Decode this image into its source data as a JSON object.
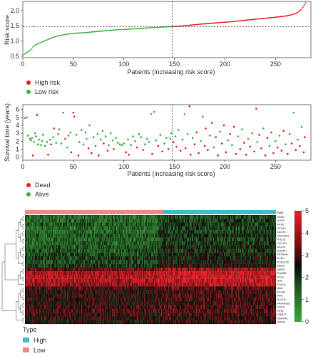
{
  "chart_data": [
    {
      "type": "scatter",
      "ylabel": "Risk score",
      "xlabel": "Patients (increasing risk score)",
      "xlim": [
        0,
        285
      ],
      "ylim": [
        0.45,
        2.3
      ],
      "x_ticks": [
        "0",
        "50",
        "100",
        "150",
        "200",
        "250"
      ],
      "y_ticks": [
        "0.5",
        "1.0",
        "1.5",
        "2.0"
      ],
      "cutoff_patient": 148,
      "cutoff_score": 1.47,
      "n_patients": 280,
      "curve_points": [
        [
          1,
          0.55
        ],
        [
          2,
          0.58
        ],
        [
          4,
          0.62
        ],
        [
          6,
          0.66
        ],
        [
          8,
          0.72
        ],
        [
          10,
          0.8
        ],
        [
          12,
          0.86
        ],
        [
          15,
          0.91
        ],
        [
          20,
          0.98
        ],
        [
          25,
          1.05
        ],
        [
          30,
          1.12
        ],
        [
          35,
          1.17
        ],
        [
          40,
          1.2
        ],
        [
          45,
          1.23
        ],
        [
          50,
          1.25
        ],
        [
          60,
          1.27
        ],
        [
          70,
          1.3
        ],
        [
          80,
          1.33
        ],
        [
          90,
          1.36
        ],
        [
          100,
          1.38
        ],
        [
          110,
          1.4
        ],
        [
          120,
          1.42
        ],
        [
          130,
          1.44
        ],
        [
          140,
          1.46
        ],
        [
          148,
          1.47
        ],
        [
          160,
          1.5
        ],
        [
          175,
          1.55
        ],
        [
          190,
          1.59
        ],
        [
          205,
          1.63
        ],
        [
          220,
          1.68
        ],
        [
          235,
          1.73
        ],
        [
          250,
          1.78
        ],
        [
          262,
          1.83
        ],
        [
          268,
          1.88
        ],
        [
          272,
          1.94
        ],
        [
          275,
          2.02
        ],
        [
          277,
          2.1
        ],
        [
          279,
          2.2
        ],
        [
          280,
          2.25
        ]
      ],
      "series": [
        {
          "name": "High risk",
          "color": "#e8202a"
        },
        {
          "name": "Low risk",
          "color": "#40b040"
        }
      ],
      "legend_placement": "bottom-left"
    },
    {
      "type": "scatter",
      "ylabel": "Survival time (years)",
      "xlabel": "Patients (increasing risk score)",
      "xlim": [
        0,
        285
      ],
      "ylim": [
        -0.4,
        6.6
      ],
      "x_ticks": [
        "0",
        "50",
        "100",
        "150",
        "200",
        "250"
      ],
      "y_ticks": [
        "0",
        "1",
        "2",
        "3",
        "4",
        "5",
        "6"
      ],
      "cutoff_patient": 148,
      "series": [
        {
          "name": "Dead",
          "color": "#e8202a"
        },
        {
          "name": "Alive",
          "color": "#40b040"
        }
      ],
      "legend_placement": "bottom-left",
      "points": [
        {
          "x": 2,
          "y": 4.9,
          "s": "a"
        },
        {
          "x": 4,
          "y": 5.0,
          "s": "a"
        },
        {
          "x": 5,
          "y": 2.7,
          "s": "a"
        },
        {
          "x": 7,
          "y": 2.3,
          "s": "a"
        },
        {
          "x": 8,
          "y": 2.1,
          "s": "a"
        },
        {
          "x": 9,
          "y": 2.4,
          "s": "a"
        },
        {
          "x": 10,
          "y": 0.2,
          "s": "d"
        },
        {
          "x": 11,
          "y": 1.9,
          "s": "a"
        },
        {
          "x": 12,
          "y": 3.0,
          "s": "a"
        },
        {
          "x": 13,
          "y": 2.6,
          "s": "a"
        },
        {
          "x": 14,
          "y": 5.3,
          "s": "d"
        },
        {
          "x": 15,
          "y": 1.6,
          "s": "a"
        },
        {
          "x": 16,
          "y": 2.2,
          "s": "a"
        },
        {
          "x": 18,
          "y": 1.5,
          "s": "a"
        },
        {
          "x": 19,
          "y": 2.0,
          "s": "a"
        },
        {
          "x": 20,
          "y": 2.8,
          "s": "a"
        },
        {
          "x": 22,
          "y": 1.4,
          "s": "a"
        },
        {
          "x": 24,
          "y": 1.9,
          "s": "a"
        },
        {
          "x": 25,
          "y": 0.3,
          "s": "d"
        },
        {
          "x": 27,
          "y": 2.2,
          "s": "a"
        },
        {
          "x": 28,
          "y": 1.6,
          "s": "d"
        },
        {
          "x": 30,
          "y": 2.5,
          "s": "a"
        },
        {
          "x": 31,
          "y": 3.6,
          "s": "d"
        },
        {
          "x": 33,
          "y": 1.8,
          "s": "a"
        },
        {
          "x": 35,
          "y": 2.9,
          "s": "a"
        },
        {
          "x": 36,
          "y": 3.5,
          "s": "a"
        },
        {
          "x": 38,
          "y": 1.7,
          "s": "a"
        },
        {
          "x": 40,
          "y": 5.6,
          "s": "a"
        },
        {
          "x": 42,
          "y": 2.3,
          "s": "d"
        },
        {
          "x": 44,
          "y": 1.2,
          "s": "a"
        },
        {
          "x": 45,
          "y": 2.7,
          "s": "a"
        },
        {
          "x": 47,
          "y": 3.1,
          "s": "a"
        },
        {
          "x": 48,
          "y": 0.6,
          "s": "d"
        },
        {
          "x": 50,
          "y": 5.6,
          "s": "d"
        },
        {
          "x": 51,
          "y": 5.1,
          "s": "d"
        },
        {
          "x": 53,
          "y": 2.8,
          "s": "a"
        },
        {
          "x": 55,
          "y": 0.2,
          "s": "d"
        },
        {
          "x": 56,
          "y": 1.9,
          "s": "a"
        },
        {
          "x": 58,
          "y": 3.4,
          "s": "a"
        },
        {
          "x": 60,
          "y": 1.6,
          "s": "a"
        },
        {
          "x": 62,
          "y": 3.1,
          "s": "a"
        },
        {
          "x": 63,
          "y": 2.3,
          "s": "a"
        },
        {
          "x": 65,
          "y": 1.1,
          "s": "d"
        },
        {
          "x": 66,
          "y": 4.0,
          "s": "a"
        },
        {
          "x": 68,
          "y": 0.5,
          "s": "d"
        },
        {
          "x": 70,
          "y": 2.5,
          "s": "a"
        },
        {
          "x": 72,
          "y": 1.4,
          "s": "a"
        },
        {
          "x": 74,
          "y": 2.9,
          "s": "a"
        },
        {
          "x": 75,
          "y": 0.2,
          "s": "d"
        },
        {
          "x": 77,
          "y": 2.2,
          "s": "a"
        },
        {
          "x": 79,
          "y": 3.3,
          "s": "a"
        },
        {
          "x": 80,
          "y": 1.7,
          "s": "d"
        },
        {
          "x": 82,
          "y": 2.6,
          "s": "a"
        },
        {
          "x": 84,
          "y": 0.8,
          "s": "d"
        },
        {
          "x": 85,
          "y": 1.5,
          "s": "a"
        },
        {
          "x": 87,
          "y": 3.0,
          "s": "a"
        },
        {
          "x": 89,
          "y": 2.1,
          "s": "a"
        },
        {
          "x": 90,
          "y": 1.0,
          "s": "d"
        },
        {
          "x": 92,
          "y": 2.4,
          "s": "a"
        },
        {
          "x": 94,
          "y": 1.8,
          "s": "a"
        },
        {
          "x": 96,
          "y": 1.6,
          "s": "a"
        },
        {
          "x": 98,
          "y": 1.5,
          "s": "a"
        },
        {
          "x": 100,
          "y": 1.7,
          "s": "a"
        },
        {
          "x": 102,
          "y": 0.6,
          "s": "d"
        },
        {
          "x": 104,
          "y": 2.2,
          "s": "a"
        },
        {
          "x": 105,
          "y": 0.3,
          "s": "d"
        },
        {
          "x": 107,
          "y": 1.5,
          "s": "a"
        },
        {
          "x": 109,
          "y": 2.6,
          "s": "a"
        },
        {
          "x": 111,
          "y": 2.0,
          "s": "a"
        },
        {
          "x": 113,
          "y": 1.2,
          "s": "d"
        },
        {
          "x": 115,
          "y": 2.9,
          "s": "a"
        },
        {
          "x": 117,
          "y": 2.5,
          "s": "a"
        },
        {
          "x": 119,
          "y": 0.9,
          "s": "d"
        },
        {
          "x": 121,
          "y": 1.6,
          "s": "a"
        },
        {
          "x": 123,
          "y": 2.3,
          "s": "a"
        },
        {
          "x": 125,
          "y": 1.9,
          "s": "a"
        },
        {
          "x": 127,
          "y": 5.4,
          "s": "a"
        },
        {
          "x": 128,
          "y": 0.4,
          "s": "d"
        },
        {
          "x": 130,
          "y": 5.7,
          "s": "a"
        },
        {
          "x": 132,
          "y": 2.1,
          "s": "a"
        },
        {
          "x": 134,
          "y": 1.4,
          "s": "d"
        },
        {
          "x": 136,
          "y": 2.8,
          "s": "a"
        },
        {
          "x": 138,
          "y": 0.7,
          "s": "d"
        },
        {
          "x": 140,
          "y": 1.7,
          "s": "a"
        },
        {
          "x": 142,
          "y": 2.4,
          "s": "a"
        },
        {
          "x": 144,
          "y": 1.0,
          "s": "d"
        },
        {
          "x": 146,
          "y": 2.3,
          "s": "a"
        },
        {
          "x": 147,
          "y": 3.0,
          "s": "a"
        },
        {
          "x": 149,
          "y": 1.9,
          "s": "d"
        },
        {
          "x": 151,
          "y": 2.6,
          "s": "a"
        },
        {
          "x": 152,
          "y": 1.3,
          "s": "d"
        },
        {
          "x": 154,
          "y": 3.4,
          "s": "a"
        },
        {
          "x": 156,
          "y": 0.8,
          "s": "d"
        },
        {
          "x": 158,
          "y": 2.2,
          "s": "a"
        },
        {
          "x": 160,
          "y": 5.4,
          "s": "a"
        },
        {
          "x": 161,
          "y": 1.1,
          "s": "d"
        },
        {
          "x": 163,
          "y": 2.9,
          "s": "a"
        },
        {
          "x": 165,
          "y": 6.4,
          "s": "d"
        },
        {
          "x": 166,
          "y": 0.3,
          "s": "d"
        },
        {
          "x": 168,
          "y": 2.4,
          "s": "a"
        },
        {
          "x": 170,
          "y": 1.6,
          "s": "d"
        },
        {
          "x": 172,
          "y": 3.1,
          "s": "d"
        },
        {
          "x": 174,
          "y": 0.5,
          "s": "d"
        },
        {
          "x": 176,
          "y": 2.0,
          "s": "a"
        },
        {
          "x": 178,
          "y": 5.1,
          "s": "a"
        },
        {
          "x": 180,
          "y": 1.4,
          "s": "d"
        },
        {
          "x": 181,
          "y": 3.6,
          "s": "d"
        },
        {
          "x": 183,
          "y": 0.9,
          "s": "d"
        },
        {
          "x": 185,
          "y": 2.7,
          "s": "a"
        },
        {
          "x": 187,
          "y": 4.3,
          "s": "d"
        },
        {
          "x": 189,
          "y": 1.2,
          "s": "a"
        },
        {
          "x": 191,
          "y": 2.5,
          "s": "d"
        },
        {
          "x": 193,
          "y": 0.2,
          "s": "d"
        },
        {
          "x": 195,
          "y": 3.2,
          "s": "a"
        },
        {
          "x": 197,
          "y": 1.7,
          "s": "d"
        },
        {
          "x": 199,
          "y": 4.0,
          "s": "d"
        },
        {
          "x": 201,
          "y": 0.6,
          "s": "d"
        },
        {
          "x": 203,
          "y": 2.1,
          "s": "a"
        },
        {
          "x": 205,
          "y": 2.9,
          "s": "d"
        },
        {
          "x": 207,
          "y": 1.5,
          "s": "a"
        },
        {
          "x": 209,
          "y": 3.8,
          "s": "d"
        },
        {
          "x": 211,
          "y": 0.4,
          "s": "d"
        },
        {
          "x": 213,
          "y": 2.6,
          "s": "a"
        },
        {
          "x": 215,
          "y": 1.0,
          "s": "d"
        },
        {
          "x": 217,
          "y": 3.5,
          "s": "a"
        },
        {
          "x": 219,
          "y": 1.8,
          "s": "d"
        },
        {
          "x": 221,
          "y": 0.3,
          "s": "d"
        },
        {
          "x": 223,
          "y": 2.3,
          "s": "a"
        },
        {
          "x": 225,
          "y": 1.3,
          "s": "d"
        },
        {
          "x": 227,
          "y": 3.0,
          "s": "a"
        },
        {
          "x": 229,
          "y": 0.7,
          "s": "d"
        },
        {
          "x": 231,
          "y": 6.1,
          "s": "d"
        },
        {
          "x": 232,
          "y": 1.9,
          "s": "a"
        },
        {
          "x": 234,
          "y": 2.8,
          "s": "d"
        },
        {
          "x": 236,
          "y": 1.1,
          "s": "d"
        },
        {
          "x": 238,
          "y": 3.6,
          "s": "a"
        },
        {
          "x": 240,
          "y": 0.2,
          "s": "d"
        },
        {
          "x": 242,
          "y": 2.4,
          "s": "d"
        },
        {
          "x": 244,
          "y": 1.4,
          "s": "a"
        },
        {
          "x": 246,
          "y": 3.1,
          "s": "d"
        },
        {
          "x": 248,
          "y": 0.5,
          "s": "d"
        },
        {
          "x": 250,
          "y": 2.0,
          "s": "a"
        },
        {
          "x": 252,
          "y": 1.2,
          "s": "d"
        },
        {
          "x": 254,
          "y": 2.7,
          "s": "a"
        },
        {
          "x": 256,
          "y": 0.8,
          "s": "d"
        },
        {
          "x": 258,
          "y": 3.3,
          "s": "d"
        },
        {
          "x": 260,
          "y": 1.6,
          "s": "a"
        },
        {
          "x": 262,
          "y": 0.4,
          "s": "d"
        },
        {
          "x": 264,
          "y": 2.9,
          "s": "a"
        },
        {
          "x": 266,
          "y": 1.7,
          "s": "d"
        },
        {
          "x": 268,
          "y": 5.6,
          "s": "a"
        },
        {
          "x": 270,
          "y": 0.9,
          "s": "d"
        },
        {
          "x": 272,
          "y": 2.2,
          "s": "a"
        },
        {
          "x": 274,
          "y": 1.4,
          "s": "d"
        },
        {
          "x": 276,
          "y": 3.8,
          "s": "a"
        },
        {
          "x": 278,
          "y": 0.6,
          "s": "d"
        },
        {
          "x": 279,
          "y": 2.5,
          "s": "d"
        }
      ]
    },
    {
      "type": "heatmap",
      "columns_low": 148,
      "columns_high": 132,
      "type_legend_label": "Type",
      "type_groups": [
        {
          "name": "High",
          "color": "#3fc0c8"
        },
        {
          "name": "Low",
          "color": "#f08a86"
        }
      ],
      "type_bar_label": "type",
      "colorbar_ticks": [
        "0",
        "1",
        "2",
        "3",
        "4",
        "5"
      ],
      "colorbar_range": [
        0,
        5
      ],
      "genes": [
        {
          "name": "ASNS",
          "base": 1.4,
          "trend": 0.3
        },
        {
          "name": "AGPS",
          "base": 1.6,
          "trend": 0.3
        },
        {
          "name": "PKM2",
          "base": 1.7,
          "trend": 0.2
        },
        {
          "name": "ACAA1",
          "base": 1.5,
          "trend": 0.3
        },
        {
          "name": "ALOX5",
          "base": 1.6,
          "trend": 0.3
        },
        {
          "name": "RALDNN1",
          "base": 1.8,
          "trend": 0.3
        },
        {
          "name": "PGLS2",
          "base": 1.6,
          "trend": 0.2
        },
        {
          "name": "UCLAT1",
          "base": 1.7,
          "trend": 0.3
        },
        {
          "name": "ACAT1",
          "base": 1.9,
          "trend": 0.3
        },
        {
          "name": "ENOPH",
          "base": 1.8,
          "trend": 0.2
        },
        {
          "name": "PIP6K2A",
          "base": 2.0,
          "trend": 0.3
        },
        {
          "name": "KYNU",
          "base": 2.1,
          "trend": 0.2
        },
        {
          "name": "PLA2G2D",
          "base": 2.0,
          "trend": 0.3
        },
        {
          "name": "ADSS",
          "base": 2.3,
          "trend": 0.3
        },
        {
          "name": "NPRT1",
          "base": 3.6,
          "trend": 0.3
        },
        {
          "name": "RADRB",
          "base": 4.3,
          "trend": 0.2
        },
        {
          "name": "PYGL",
          "base": 4.4,
          "trend": 0.2
        },
        {
          "name": "ASS",
          "base": 4.2,
          "trend": 0.2
        },
        {
          "name": "POLD1",
          "base": 4.0,
          "trend": 0.2
        },
        {
          "name": "ADA",
          "base": 3.0,
          "trend": 0.1
        },
        {
          "name": "PLCB3",
          "base": 2.8,
          "trend": 0.1
        },
        {
          "name": "ATIC",
          "base": 2.9,
          "trend": 0.1
        },
        {
          "name": "ALDH2",
          "base": 2.9,
          "trend": 0.1
        },
        {
          "name": "PAFAH1B2",
          "base": 2.8,
          "trend": 0.1
        },
        {
          "name": "GUKS",
          "base": 3.0,
          "trend": 0.1
        },
        {
          "name": "PEPL",
          "base": 3.1,
          "trend": 0.1
        },
        {
          "name": "DNMT1",
          "base": 2.9,
          "trend": 0.1
        },
        {
          "name": "GMPPA1",
          "base": 2.8,
          "trend": 0.1
        },
        {
          "name": "RDH11",
          "base": 2.7,
          "trend": 0.1
        }
      ]
    }
  ]
}
